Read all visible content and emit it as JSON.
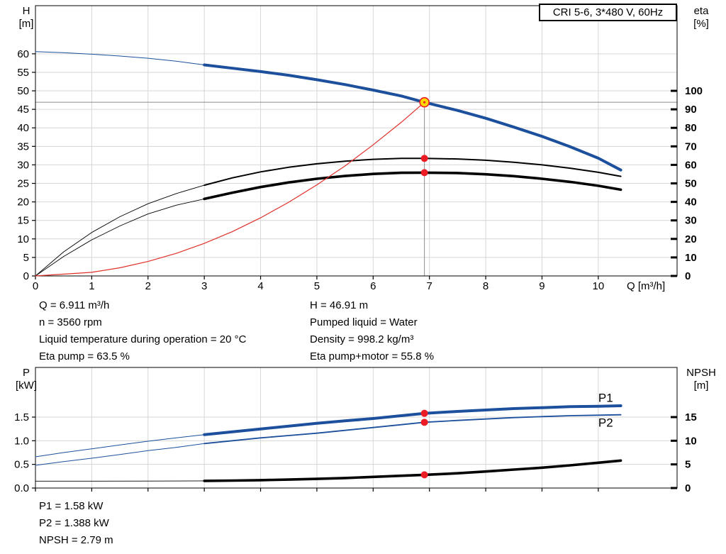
{
  "title_box": "CRI 5-6, 3*480 V, 60Hz",
  "annotations": {
    "top_left": [
      "Q = 6.911 m³/h",
      "n = 3560 rpm",
      "Liquid temperature during operation = 20 °C",
      "Eta pump = 63.5 %"
    ],
    "top_right": [
      "H = 46.91 m",
      "Pumped liquid = Water",
      "Density = 998.2 kg/m³",
      "Eta pump+motor = 55.8 %"
    ],
    "bottom_left": [
      "P1 = 1.58 kW",
      "P2 = 1.388 kW",
      "NPSH = 2.79 m"
    ]
  },
  "colors": {
    "curve_blue": "#1c4f9c",
    "curve_black": "#000000",
    "system_curve_red": "#e0302a",
    "marker_red": "#ed1c24",
    "marker_yellow": "#ffd800",
    "grid": "#d6d6d6",
    "crosshair": "#8c8c8c"
  },
  "chart_data": [
    {
      "type": "line",
      "name": "head-efficiency-chart",
      "title": "CRI 5-6, 3*480 V, 60Hz",
      "xlabel": "Q [m³/h]",
      "ylabel_left": "H [m]",
      "ylabel_right": "eta [%]",
      "xlim": [
        0,
        11.4
      ],
      "ylim_left": [
        0,
        73
      ],
      "ylim_right": [
        0,
        146
      ],
      "xticks": [
        "0",
        "1",
        "2",
        "3",
        "4",
        "5",
        "6",
        "7",
        "8",
        "9",
        "10"
      ],
      "yticks_left": [
        "0",
        "5",
        "10",
        "15",
        "20",
        "25",
        "30",
        "35",
        "40",
        "45",
        "50",
        "55",
        "60"
      ],
      "yticks_right": [
        "0",
        "10",
        "20",
        "30",
        "40",
        "50",
        "60",
        "70",
        "80",
        "90",
        "100"
      ],
      "grid": true,
      "crosshair": {
        "q": 6.911,
        "h": 46.91
      },
      "series": [
        {
          "id": "qh-curve",
          "name": "QH curve (head)",
          "axis": "left",
          "color": "#1c4f9c",
          "width": 4,
          "thin_width": 1,
          "thick_from": 3,
          "points": [
            [
              0,
              60.6
            ],
            [
              0.5,
              60.3
            ],
            [
              1,
              59.9
            ],
            [
              1.5,
              59.4
            ],
            [
              2,
              58.8
            ],
            [
              2.5,
              58.0
            ],
            [
              3,
              57.0
            ],
            [
              3.5,
              56.1
            ],
            [
              4,
              55.2
            ],
            [
              4.5,
              54.2
            ],
            [
              5,
              53.0
            ],
            [
              5.5,
              51.7
            ],
            [
              6,
              50.2
            ],
            [
              6.5,
              48.6
            ],
            [
              6.911,
              46.91
            ],
            [
              7.5,
              44.7
            ],
            [
              8,
              42.6
            ],
            [
              8.5,
              40.2
            ],
            [
              9,
              37.7
            ],
            [
              9.5,
              34.9
            ],
            [
              10,
              31.8
            ],
            [
              10.4,
              28.6
            ]
          ]
        },
        {
          "id": "eta-pump-curve",
          "name": "Eta pump [%]",
          "axis": "right",
          "color": "#000000",
          "width": 2,
          "thin_width": 0.9,
          "thick_from": 3,
          "points": [
            [
              0,
              0
            ],
            [
              0.5,
              13
            ],
            [
              1,
              23.5
            ],
            [
              1.5,
              32
            ],
            [
              2,
              39
            ],
            [
              2.5,
              44.5
            ],
            [
              3,
              49
            ],
            [
              3.5,
              53
            ],
            [
              4,
              56.2
            ],
            [
              4.5,
              58.7
            ],
            [
              5,
              60.6
            ],
            [
              5.5,
              62
            ],
            [
              6,
              63
            ],
            [
              6.5,
              63.5
            ],
            [
              6.911,
              63.5
            ],
            [
              7.5,
              63.2
            ],
            [
              8,
              62.5
            ],
            [
              8.5,
              61.4
            ],
            [
              9,
              60
            ],
            [
              9.5,
              58.2
            ],
            [
              10,
              56
            ],
            [
              10.4,
              53.8
            ]
          ]
        },
        {
          "id": "eta-pump-motor-curve",
          "name": "Eta pump+motor [%]",
          "axis": "right",
          "color": "#000000",
          "width": 3.6,
          "thin_width": 0.9,
          "thick_from": 3,
          "points": [
            [
              0,
              0
            ],
            [
              0.5,
              10.5
            ],
            [
              1,
              19.5
            ],
            [
              1.5,
              27
            ],
            [
              2,
              33.5
            ],
            [
              2.5,
              38.2
            ],
            [
              3,
              41.6
            ],
            [
              3.5,
              45
            ],
            [
              4,
              48
            ],
            [
              4.5,
              50.5
            ],
            [
              5,
              52.5
            ],
            [
              5.5,
              54
            ],
            [
              6,
              55.1
            ],
            [
              6.5,
              55.7
            ],
            [
              6.911,
              55.8
            ],
            [
              7.5,
              55.6
            ],
            [
              8,
              54.9
            ],
            [
              8.5,
              53.9
            ],
            [
              9,
              52.5
            ],
            [
              9.5,
              50.8
            ],
            [
              10,
              48.7
            ],
            [
              10.4,
              46.6
            ]
          ]
        },
        {
          "id": "system-curve",
          "name": "System curve",
          "axis": "left",
          "color": "#e0302a",
          "width": 1.2,
          "points": [
            [
              0,
              0
            ],
            [
              1,
              0.98
            ],
            [
              1.5,
              2.2
            ],
            [
              2,
              3.9
            ],
            [
              2.5,
              6.1
            ],
            [
              3,
              8.8
            ],
            [
              3.5,
              12.0
            ],
            [
              4,
              15.7
            ],
            [
              4.5,
              19.9
            ],
            [
              5,
              24.6
            ],
            [
              5.5,
              29.7
            ],
            [
              6,
              35.4
            ],
            [
              6.5,
              41.5
            ],
            [
              6.911,
              46.91
            ]
          ]
        }
      ],
      "markers": [
        {
          "q": 6.911,
          "v": 46.91,
          "axis": "left",
          "style": "duty",
          "label": "Duty point Q=6.911 H=46.91"
        },
        {
          "q": 6.911,
          "v": 63.5,
          "axis": "right",
          "style": "dot",
          "label": "Eta pump point 63.5 %"
        },
        {
          "q": 6.911,
          "v": 55.8,
          "axis": "right",
          "style": "dot",
          "label": "Eta pump+motor point 55.8 %"
        }
      ],
      "labels": []
    },
    {
      "type": "line",
      "name": "power-npsh-chart",
      "title": "",
      "xlabel": "",
      "ylabel_left": "P [kW]",
      "ylabel_right": "NPSH [m]",
      "xlim": [
        0,
        11.4
      ],
      "ylim_left": [
        0,
        2.55
      ],
      "ylim_right": [
        0,
        25.5
      ],
      "xticks": [
        "0",
        "1",
        "2",
        "3",
        "4",
        "5",
        "6",
        "7",
        "8",
        "9",
        "10"
      ],
      "yticks_left": [
        "0.0",
        "0.5",
        "1.0",
        "1.5"
      ],
      "yticks_right": [
        "0",
        "5",
        "10",
        "15"
      ],
      "grid": true,
      "crosshair": null,
      "series": [
        {
          "id": "p1-curve",
          "name": "P1 (power input)",
          "axis": "left",
          "color": "#1c4f9c",
          "width": 4,
          "thin_width": 1,
          "thick_from": 3,
          "points": [
            [
              0,
              0.66
            ],
            [
              0.5,
              0.75
            ],
            [
              1,
              0.83
            ],
            [
              1.5,
              0.91
            ],
            [
              2,
              0.99
            ],
            [
              2.5,
              1.06
            ],
            [
              3,
              1.13
            ],
            [
              3.5,
              1.19
            ],
            [
              4,
              1.25
            ],
            [
              4.5,
              1.31
            ],
            [
              5,
              1.37
            ],
            [
              5.5,
              1.42
            ],
            [
              6,
              1.47
            ],
            [
              6.5,
              1.53
            ],
            [
              6.911,
              1.58
            ],
            [
              7.5,
              1.62
            ],
            [
              8,
              1.65
            ],
            [
              8.5,
              1.68
            ],
            [
              9,
              1.7
            ],
            [
              9.5,
              1.72
            ],
            [
              10,
              1.73
            ],
            [
              10.4,
              1.74
            ]
          ]
        },
        {
          "id": "p2-curve",
          "name": "P2 (shaft power)",
          "axis": "left",
          "color": "#1c4f9c",
          "width": 1.8,
          "thin_width": 1,
          "thick_from": 3,
          "points": [
            [
              0,
              0.48
            ],
            [
              0.5,
              0.56
            ],
            [
              1,
              0.63
            ],
            [
              1.5,
              0.71
            ],
            [
              2,
              0.79
            ],
            [
              2.5,
              0.86
            ],
            [
              3,
              0.94
            ],
            [
              3.5,
              1.0
            ],
            [
              4,
              1.06
            ],
            [
              4.5,
              1.11
            ],
            [
              5,
              1.16
            ],
            [
              5.5,
              1.22
            ],
            [
              6,
              1.28
            ],
            [
              6.5,
              1.34
            ],
            [
              6.911,
              1.39
            ],
            [
              7.5,
              1.43
            ],
            [
              8,
              1.46
            ],
            [
              8.5,
              1.49
            ],
            [
              9,
              1.51
            ],
            [
              9.5,
              1.53
            ],
            [
              10,
              1.54
            ],
            [
              10.4,
              1.55
            ]
          ]
        },
        {
          "id": "npsh-curve",
          "name": "NPSH",
          "axis": "right",
          "color": "#000000",
          "width": 3.6,
          "thin_width": 0.9,
          "thick_from": 3,
          "points": [
            [
              0,
              1.45
            ],
            [
              1,
              1.45
            ],
            [
              2,
              1.47
            ],
            [
              3,
              1.52
            ],
            [
              3.5,
              1.58
            ],
            [
              4,
              1.66
            ],
            [
              4.5,
              1.78
            ],
            [
              5,
              1.93
            ],
            [
              5.5,
              2.12
            ],
            [
              6,
              2.36
            ],
            [
              6.5,
              2.6
            ],
            [
              6.911,
              2.79
            ],
            [
              7.5,
              3.12
            ],
            [
              8,
              3.5
            ],
            [
              8.5,
              3.9
            ],
            [
              9,
              4.3
            ],
            [
              9.5,
              4.8
            ],
            [
              10,
              5.35
            ],
            [
              10.4,
              5.8
            ]
          ]
        }
      ],
      "markers": [
        {
          "q": 6.911,
          "v": 1.58,
          "axis": "left",
          "style": "dot",
          "label": "P1 point 1.58 kW"
        },
        {
          "q": 6.911,
          "v": 1.39,
          "axis": "left",
          "style": "dot",
          "label": "P2 point 1.388 kW"
        },
        {
          "q": 6.911,
          "v": 2.79,
          "axis": "right",
          "style": "dot",
          "label": "NPSH point 2.79 m"
        }
      ],
      "labels": [
        {
          "text": "P1",
          "q": 10.0,
          "v": 1.82,
          "axis": "left",
          "color": "#1c4f9c"
        },
        {
          "text": "P2",
          "q": 10.0,
          "v": 1.3,
          "axis": "left",
          "color": "#1c4f9c"
        }
      ]
    }
  ]
}
